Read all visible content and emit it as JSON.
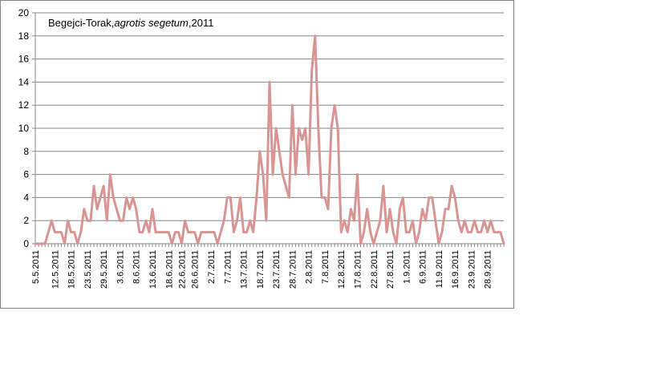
{
  "chart_data": {
    "type": "line",
    "title": {
      "parts": [
        {
          "text": "Begejci-Torak,",
          "italic": false
        },
        {
          "text": "agrotis segetum",
          "italic": true
        },
        {
          "text": ",2011",
          "italic": false
        }
      ]
    },
    "xlabel": "",
    "ylabel": "",
    "ylim": [
      0,
      20
    ],
    "yticks": [
      0,
      2,
      4,
      6,
      8,
      10,
      12,
      14,
      16,
      18,
      20
    ],
    "grid": true,
    "legend": "none",
    "line_color": "#d99594",
    "tick_labels": [
      "5.5.2011",
      "12.5.2011",
      "18.5.2011",
      "23.5.2011",
      "29.5.2011",
      "3.6.2011",
      "8.6.2011",
      "13.6.2011",
      "18.6.2011",
      "22.6.2011",
      "26.6.2011",
      "2.7.2011",
      "7.7.2011",
      "13.7.2011",
      "18.7.2011",
      "23.7.2011",
      "28.7.2011",
      "2.8.2011",
      "7.8.2011",
      "12.8.2011",
      "17.8.2011",
      "22.8.2011",
      "27.8.2011",
      "1.9.2011",
      "6.9.2011",
      "11.9.2011",
      "16.9.2011",
      "23.9.2011",
      "28.9.2011"
    ],
    "tick_positions": [
      0,
      6,
      11,
      16,
      21,
      26,
      31,
      36,
      41,
      45,
      49,
      54,
      59,
      64,
      69,
      74,
      79,
      84,
      89,
      94,
      99,
      104,
      109,
      114,
      119,
      124,
      129,
      134,
      139
    ],
    "values": [
      0,
      0,
      0,
      0,
      1,
      2,
      1,
      1,
      1,
      0,
      2,
      1,
      1,
      0,
      1,
      3,
      2,
      2,
      5,
      3,
      4,
      5,
      2,
      6,
      4,
      3,
      2,
      2,
      4,
      3,
      4,
      3,
      1,
      1,
      2,
      1,
      3,
      1,
      1,
      1,
      1,
      1,
      0,
      1,
      1,
      0,
      2,
      1,
      1,
      1,
      0,
      1,
      1,
      1,
      1,
      1,
      0,
      1,
      2,
      4,
      4,
      1,
      2,
      4,
      1,
      1,
      2,
      1,
      4,
      8,
      6,
      2,
      14,
      6,
      10,
      8,
      6,
      5,
      4,
      12,
      6,
      10,
      9,
      10,
      6,
      15,
      18,
      10,
      4,
      4,
      3,
      10,
      12,
      10,
      1,
      2,
      1,
      3,
      2,
      6,
      0,
      1,
      3,
      1,
      0,
      1,
      2,
      5,
      1,
      3,
      1,
      0,
      3,
      4,
      1,
      1,
      2,
      0,
      1,
      3,
      2,
      4,
      4,
      2,
      0,
      1,
      3,
      3,
      5,
      4,
      2,
      1,
      2,
      1,
      1,
      2,
      1,
      1,
      2,
      1,
      2,
      1,
      1,
      1,
      0
    ]
  }
}
